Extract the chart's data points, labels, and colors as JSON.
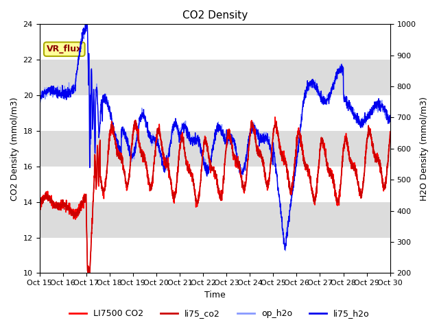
{
  "title": "CO2 Density",
  "xlabel": "Time",
  "ylabel_left": "CO2 Density (mmol/m3)",
  "ylabel_right": "H2O Density (mmol/m3)",
  "ylim_left": [
    10,
    24
  ],
  "ylim_right": [
    200,
    1000
  ],
  "x_tick_labels": [
    "Oct 15",
    "Oct 16",
    "Oct 17",
    "Oct 18",
    "Oct 19",
    "Oct 20",
    "Oct 21",
    "Oct 22",
    "Oct 23",
    "Oct 24",
    "Oct 25",
    "Oct 26",
    "Oct 27",
    "Oct 28",
    "Oct 29",
    "Oct 30"
  ],
  "x_tick_positions": [
    0,
    1,
    2,
    3,
    4,
    5,
    6,
    7,
    8,
    9,
    10,
    11,
    12,
    13,
    14,
    15
  ],
  "color_li7500": "#FF0000",
  "color_li75_co2": "#CC0000",
  "color_op_h2o": "#8899FF",
  "color_li75_h2o": "#0000EE",
  "annotation_text": "VR_flux",
  "annotation_bg": "#FFFF99",
  "annotation_edge": "#AAAA00",
  "background_color": "#DCDCDC",
  "grid_color": "#FFFFFF",
  "legend_labels": [
    "LI7500 CO2",
    "li75_co2",
    "op_h2o",
    "li75_h2o"
  ]
}
